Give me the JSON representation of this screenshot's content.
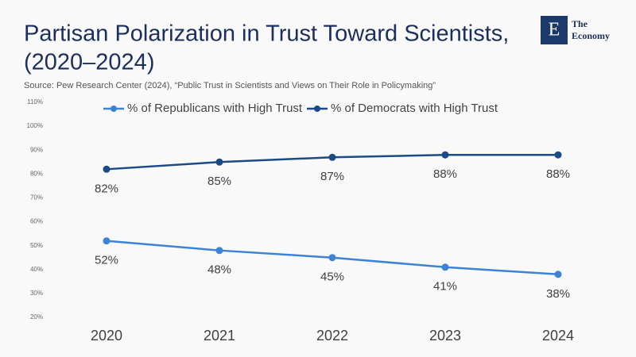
{
  "header": {
    "title": [
      "Partisan Polarization in Trust Toward Scientists,",
      "(2020–2024)"
    ],
    "source": "Source:  Pew Research Center (2024), “Public Trust in Scientists and Views on Their Role in Policymaking”",
    "logo": {
      "mark": "E",
      "text": [
        "The",
        "Economy"
      ]
    }
  },
  "chart_data": {
    "type": "line",
    "categories": [
      "2020",
      "2021",
      "2022",
      "2023",
      "2024"
    ],
    "series": [
      {
        "name": "% of Republicans with High Trust",
        "color": "#3c83d6",
        "values": [
          52,
          48,
          45,
          41,
          38
        ],
        "value_labels": [
          "52%",
          "48%",
          "45%",
          "41%",
          "38%"
        ]
      },
      {
        "name": "% of Democrats with High Trust",
        "color": "#1b4a86",
        "values": [
          82,
          85,
          87,
          88,
          88
        ],
        "value_labels": [
          "82%",
          "85%",
          "87%",
          "88%",
          "88%"
        ]
      }
    ],
    "ylim": [
      20,
      110
    ],
    "yticks": [
      {
        "value": 20,
        "label": "20%"
      },
      {
        "value": 30,
        "label": "30%"
      },
      {
        "value": 40,
        "label": "40%"
      },
      {
        "value": 50,
        "label": "50%"
      },
      {
        "value": 60,
        "label": "60%"
      },
      {
        "value": 70,
        "label": "70%"
      },
      {
        "value": 80,
        "label": "80%"
      },
      {
        "value": 90,
        "label": "90%"
      },
      {
        "value": 100,
        "label": "100%"
      },
      {
        "value": 110,
        "label": "110%"
      }
    ],
    "grid": false,
    "legend": "top"
  }
}
